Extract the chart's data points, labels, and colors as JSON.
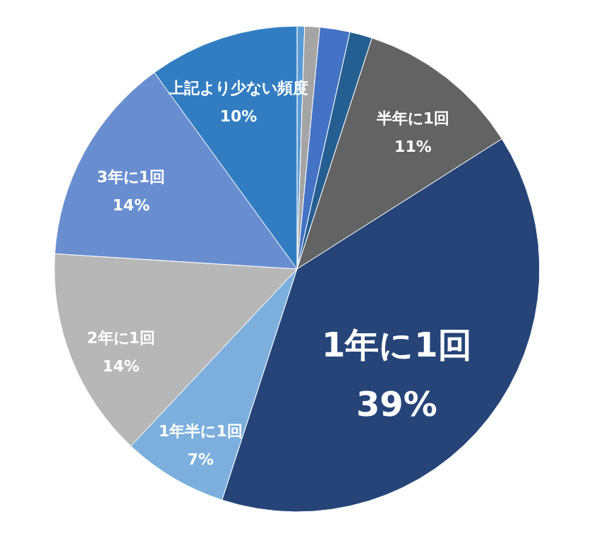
{
  "chart_data": {
    "type": "pie",
    "categories": [
      null,
      null,
      null,
      null,
      "半年に1回",
      "1年に1回",
      "1年半に1回",
      "2年に1回",
      "3年に1回",
      "上記より少ない頻度"
    ],
    "values": [
      0.5,
      1,
      2,
      1.5,
      11,
      39,
      7,
      14,
      14,
      10
    ],
    "colors": [
      "#5b9bd5",
      "#a5a5a5",
      "#4472c4",
      "#255e91",
      "#636363",
      "#264478",
      "#7cafdd",
      "#b7b7b7",
      "#698ed0",
      "#327dc2"
    ],
    "value_labels": [
      null,
      null,
      null,
      null,
      "11%",
      "39%",
      "7%",
      "14%",
      "14%",
      "10%"
    ]
  }
}
